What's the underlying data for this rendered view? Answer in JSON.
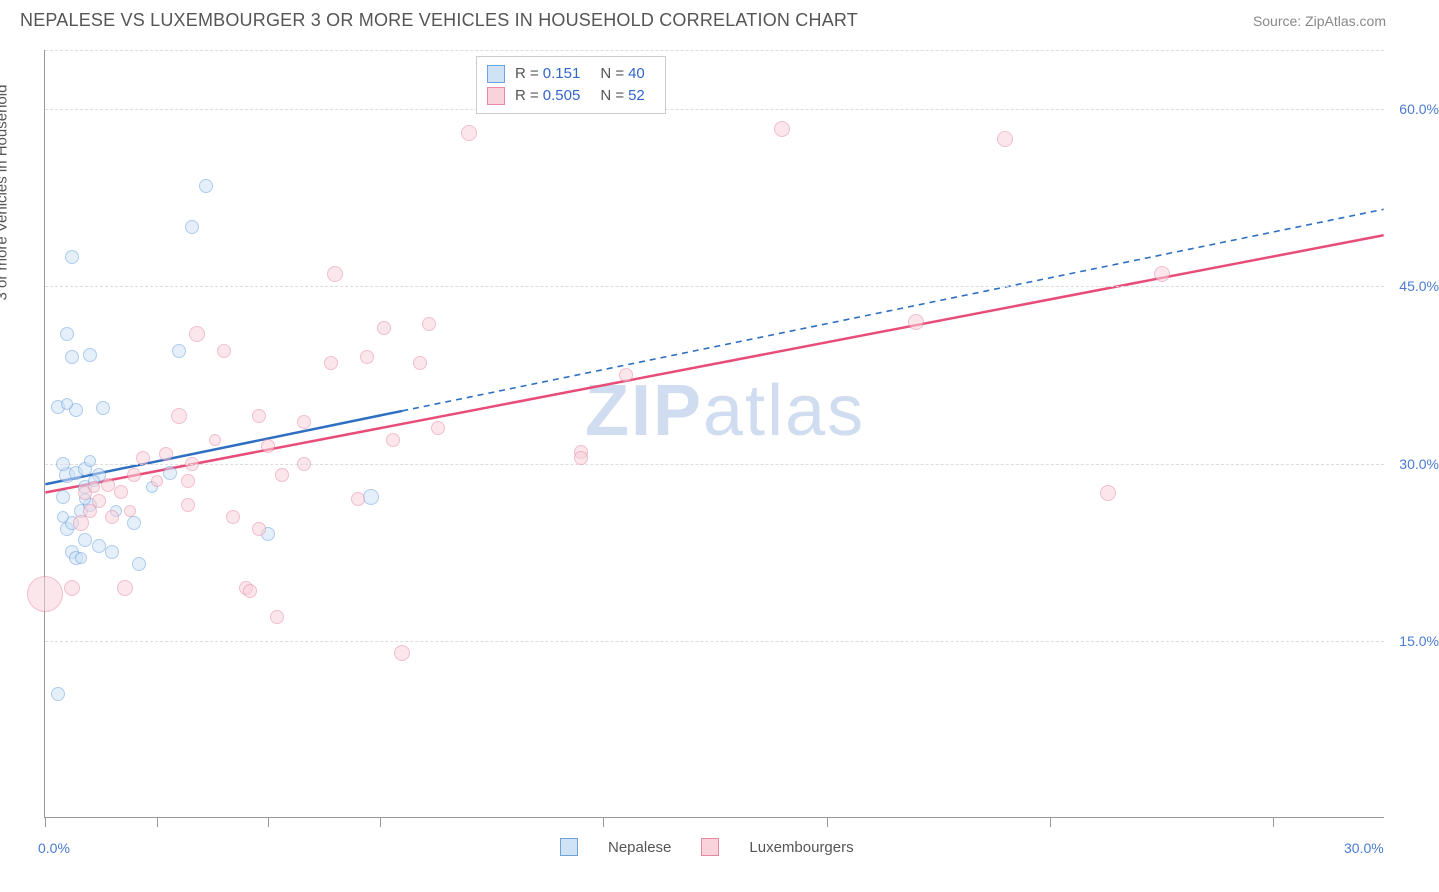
{
  "title": "NEPALESE VS LUXEMBOURGER 3 OR MORE VEHICLES IN HOUSEHOLD CORRELATION CHART",
  "source": "Source: ZipAtlas.com",
  "yaxis_title": "3 or more Vehicles in Household",
  "watermark_a": "ZIP",
  "watermark_b": "atlas",
  "chart": {
    "type": "scatter",
    "xlim": [
      0.0,
      30.0
    ],
    "ylim": [
      0.0,
      65.0
    ],
    "y_ticks": [
      15.0,
      30.0,
      45.0,
      60.0
    ],
    "y_tick_labels": [
      "15.0%",
      "30.0%",
      "45.0%",
      "60.0%"
    ],
    "x_tick_positions": [
      0,
      2.5,
      5,
      7.5,
      12.5,
      17.5,
      22.5,
      27.5
    ],
    "x_left_label": "0.0%",
    "x_right_label": "30.0%",
    "background_color": "#ffffff",
    "grid_color": "#dddddd",
    "series": [
      {
        "name": "Nepalese",
        "fill": "#cfe2f6",
        "stroke": "#6fa3db",
        "fill_opacity": 0.55,
        "line_color": "#2f6fc2",
        "R": "0.151",
        "N": "40",
        "trend": {
          "x1": 0,
          "y1": 28.2,
          "x2": 30,
          "y2": 51.5,
          "solid_until_x": 8.0
        },
        "points": [
          {
            "x": 0.3,
            "y": 10.5,
            "r": 7
          },
          {
            "x": 0.6,
            "y": 22.5,
            "r": 7
          },
          {
            "x": 0.7,
            "y": 22.0,
            "r": 7
          },
          {
            "x": 0.9,
            "y": 23.5,
            "r": 7
          },
          {
            "x": 0.5,
            "y": 24.5,
            "r": 7
          },
          {
            "x": 0.6,
            "y": 25.0,
            "r": 7
          },
          {
            "x": 0.8,
            "y": 26.0,
            "r": 7
          },
          {
            "x": 1.0,
            "y": 26.5,
            "r": 7
          },
          {
            "x": 0.4,
            "y": 27.2,
            "r": 7
          },
          {
            "x": 0.9,
            "y": 28.0,
            "r": 7
          },
          {
            "x": 0.5,
            "y": 29.0,
            "r": 8
          },
          {
            "x": 0.7,
            "y": 29.2,
            "r": 7
          },
          {
            "x": 0.9,
            "y": 29.5,
            "r": 7
          },
          {
            "x": 1.2,
            "y": 29.0,
            "r": 7
          },
          {
            "x": 0.4,
            "y": 30.0,
            "r": 7
          },
          {
            "x": 0.3,
            "y": 34.8,
            "r": 7
          },
          {
            "x": 0.7,
            "y": 34.5,
            "r": 7
          },
          {
            "x": 1.3,
            "y": 34.7,
            "r": 7
          },
          {
            "x": 0.6,
            "y": 39.0,
            "r": 7
          },
          {
            "x": 1.0,
            "y": 39.2,
            "r": 7
          },
          {
            "x": 0.5,
            "y": 41.0,
            "r": 7
          },
          {
            "x": 0.6,
            "y": 47.5,
            "r": 7
          },
          {
            "x": 1.2,
            "y": 23.0,
            "r": 7
          },
          {
            "x": 1.5,
            "y": 22.5,
            "r": 7
          },
          {
            "x": 2.1,
            "y": 21.5,
            "r": 7
          },
          {
            "x": 2.0,
            "y": 25.0,
            "r": 7
          },
          {
            "x": 2.8,
            "y": 29.2,
            "r": 7
          },
          {
            "x": 3.0,
            "y": 39.5,
            "r": 7
          },
          {
            "x": 3.3,
            "y": 50.0,
            "r": 7
          },
          {
            "x": 3.6,
            "y": 53.5,
            "r": 7
          },
          {
            "x": 5.0,
            "y": 24.0,
            "r": 7
          },
          {
            "x": 7.3,
            "y": 27.2,
            "r": 8
          },
          {
            "x": 1.1,
            "y": 28.5,
            "r": 6
          },
          {
            "x": 0.8,
            "y": 22.0,
            "r": 6
          },
          {
            "x": 0.4,
            "y": 25.5,
            "r": 6
          },
          {
            "x": 1.0,
            "y": 30.2,
            "r": 6
          },
          {
            "x": 0.9,
            "y": 27.0,
            "r": 6
          },
          {
            "x": 1.6,
            "y": 26.0,
            "r": 6
          },
          {
            "x": 2.4,
            "y": 28.0,
            "r": 6
          },
          {
            "x": 0.5,
            "y": 35.0,
            "r": 6
          }
        ]
      },
      {
        "name": "Luxembourgers",
        "fill": "#f9d2db",
        "stroke": "#e68aa3",
        "fill_opacity": 0.55,
        "line_color": "#e84d7a",
        "R": "0.505",
        "N": "52",
        "trend": {
          "x1": 0,
          "y1": 27.5,
          "x2": 30,
          "y2": 49.3,
          "solid_until_x": 30
        },
        "points": [
          {
            "x": 0.0,
            "y": 19.0,
            "r": 18
          },
          {
            "x": 0.6,
            "y": 19.5,
            "r": 8
          },
          {
            "x": 0.8,
            "y": 25.0,
            "r": 8
          },
          {
            "x": 1.0,
            "y": 26.0,
            "r": 7
          },
          {
            "x": 1.2,
            "y": 26.8,
            "r": 7
          },
          {
            "x": 0.9,
            "y": 27.5,
            "r": 7
          },
          {
            "x": 1.4,
            "y": 28.2,
            "r": 7
          },
          {
            "x": 1.7,
            "y": 27.6,
            "r": 7
          },
          {
            "x": 1.5,
            "y": 25.5,
            "r": 7
          },
          {
            "x": 1.8,
            "y": 19.5,
            "r": 8
          },
          {
            "x": 2.0,
            "y": 29.0,
            "r": 7
          },
          {
            "x": 2.2,
            "y": 30.5,
            "r": 7
          },
          {
            "x": 2.7,
            "y": 30.8,
            "r": 7
          },
          {
            "x": 3.0,
            "y": 34.0,
            "r": 8
          },
          {
            "x": 3.3,
            "y": 30.0,
            "r": 7
          },
          {
            "x": 3.2,
            "y": 28.5,
            "r": 7
          },
          {
            "x": 3.2,
            "y": 26.5,
            "r": 7
          },
          {
            "x": 3.4,
            "y": 41.0,
            "r": 8
          },
          {
            "x": 4.0,
            "y": 39.5,
            "r": 7
          },
          {
            "x": 4.2,
            "y": 25.5,
            "r": 7
          },
          {
            "x": 4.5,
            "y": 19.5,
            "r": 7
          },
          {
            "x": 4.8,
            "y": 24.5,
            "r": 7
          },
          {
            "x": 4.8,
            "y": 34.0,
            "r": 7
          },
          {
            "x": 5.0,
            "y": 31.5,
            "r": 7
          },
          {
            "x": 4.6,
            "y": 19.2,
            "r": 7
          },
          {
            "x": 5.2,
            "y": 17.0,
            "r": 7
          },
          {
            "x": 5.3,
            "y": 29.0,
            "r": 7
          },
          {
            "x": 5.8,
            "y": 33.5,
            "r": 7
          },
          {
            "x": 5.8,
            "y": 30.0,
            "r": 7
          },
          {
            "x": 6.5,
            "y": 46.0,
            "r": 8
          },
          {
            "x": 6.4,
            "y": 38.5,
            "r": 7
          },
          {
            "x": 7.0,
            "y": 27.0,
            "r": 7
          },
          {
            "x": 7.2,
            "y": 39.0,
            "r": 7
          },
          {
            "x": 7.6,
            "y": 41.5,
            "r": 7
          },
          {
            "x": 7.8,
            "y": 32.0,
            "r": 7
          },
          {
            "x": 8.0,
            "y": 14.0,
            "r": 8
          },
          {
            "x": 8.4,
            "y": 38.5,
            "r": 7
          },
          {
            "x": 8.6,
            "y": 41.8,
            "r": 7
          },
          {
            "x": 8.8,
            "y": 33.0,
            "r": 7
          },
          {
            "x": 9.5,
            "y": 58.0,
            "r": 8
          },
          {
            "x": 12.0,
            "y": 31.0,
            "r": 7
          },
          {
            "x": 12.0,
            "y": 30.5,
            "r": 7
          },
          {
            "x": 13.0,
            "y": 37.5,
            "r": 7
          },
          {
            "x": 16.5,
            "y": 58.3,
            "r": 8
          },
          {
            "x": 19.5,
            "y": 42.0,
            "r": 8
          },
          {
            "x": 21.5,
            "y": 57.5,
            "r": 8
          },
          {
            "x": 23.8,
            "y": 27.5,
            "r": 8
          },
          {
            "x": 25.0,
            "y": 46.0,
            "r": 8
          },
          {
            "x": 1.1,
            "y": 28.0,
            "r": 6
          },
          {
            "x": 1.9,
            "y": 26.0,
            "r": 6
          },
          {
            "x": 2.5,
            "y": 28.5,
            "r": 6
          },
          {
            "x": 3.8,
            "y": 32.0,
            "r": 6
          }
        ]
      }
    ]
  },
  "legend": {
    "bottom_label_a": "Nepalese",
    "bottom_label_b": "Luxembourgers"
  }
}
